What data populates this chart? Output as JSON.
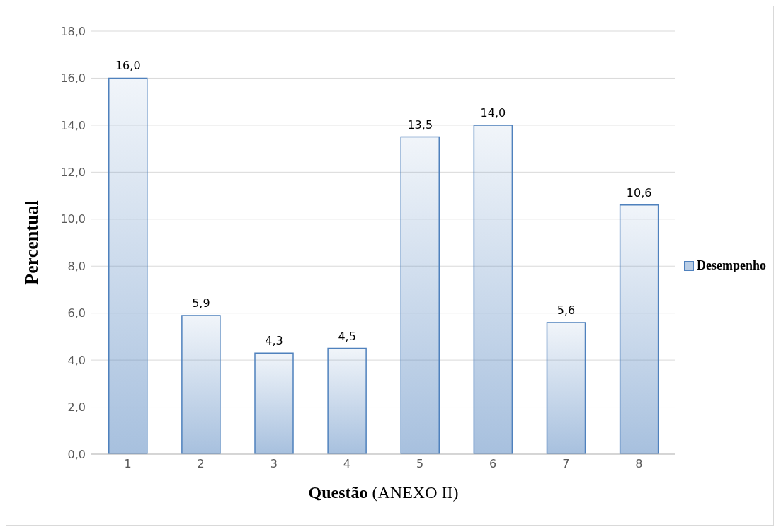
{
  "chart_data": {
    "type": "bar",
    "xlabel": "Questão (ANEXO II)",
    "ylabel": "Percentual",
    "categories": [
      "1",
      "2",
      "3",
      "4",
      "5",
      "6",
      "7",
      "8"
    ],
    "series": [
      {
        "name": "Desempenho",
        "color": "#4f81bd",
        "values": [
          16.0,
          5.9,
          4.3,
          4.5,
          13.5,
          14.0,
          5.6,
          10.6
        ],
        "value_labels": [
          "16,0",
          "5,9",
          "4,3",
          "4,5",
          "13,5",
          "14,0",
          "5,6",
          "10,6"
        ]
      }
    ],
    "ylim": [
      0,
      18
    ],
    "yticks": [
      {
        "value": 0,
        "label": "0,0"
      },
      {
        "value": 2,
        "label": "2,0"
      },
      {
        "value": 4,
        "label": "4,0"
      },
      {
        "value": 6,
        "label": "6,0"
      },
      {
        "value": 8,
        "label": "8,0"
      },
      {
        "value": 10,
        "label": "10,0"
      },
      {
        "value": 12,
        "label": "12,0"
      },
      {
        "value": 14,
        "label": "14,0"
      },
      {
        "value": 16,
        "label": "16,0"
      },
      {
        "value": 18,
        "label": "18,0"
      }
    ],
    "grid": "y",
    "legend": "right"
  }
}
